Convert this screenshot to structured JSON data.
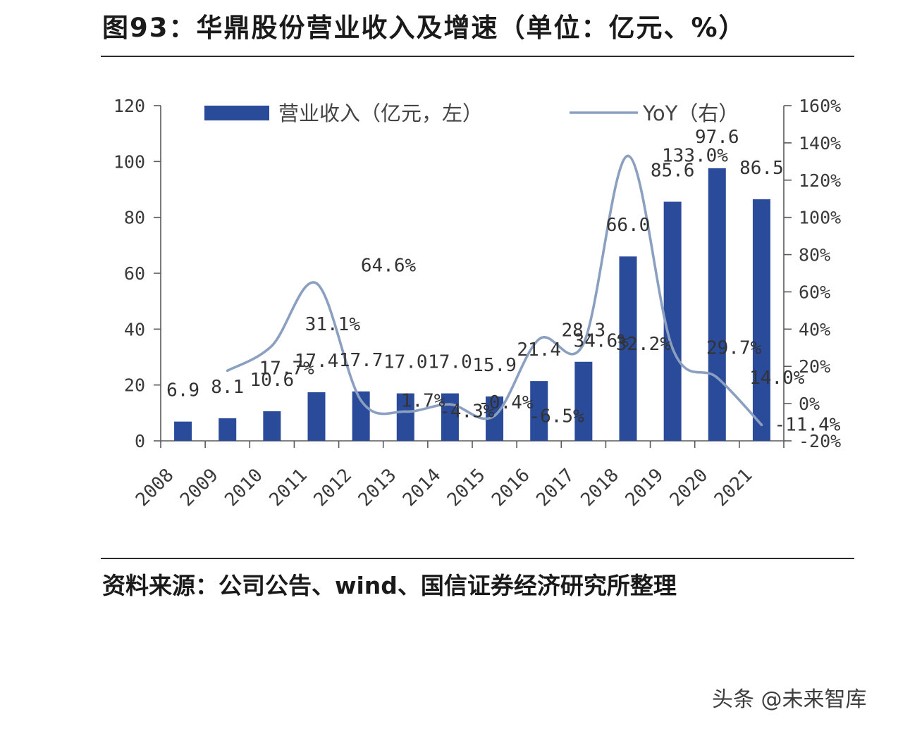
{
  "source": "资料来源：公司公告、wind、国信证券经济研究所整理",
  "watermark": "头条 @未来智库",
  "colors": {
    "bar": "#2a4a9a",
    "line": "#8ba0c0"
  },
  "chart_data": {
    "type": "bar",
    "title": "图93：华鼎股份营业收入及增速（单位：亿元、%）",
    "categories": [
      "2008",
      "2009",
      "2010",
      "2011",
      "2012",
      "2013",
      "2014",
      "2015",
      "2016",
      "2017",
      "2018",
      "2019",
      "2020",
      "2021"
    ],
    "series": [
      {
        "name": "营业收入（亿元，左）",
        "type": "bar",
        "axis": "left",
        "values": [
          6.9,
          8.1,
          10.6,
          17.4,
          17.7,
          17.0,
          17.0,
          15.9,
          21.4,
          28.3,
          66.0,
          85.6,
          97.6,
          86.5
        ],
        "data_labels": [
          "6.9",
          "8.1",
          "10.6",
          "17.4",
          "17.7",
          "17.0",
          "17.0",
          "15.9",
          "21.4",
          "28.3",
          "66.0",
          "85.6",
          "97.6",
          "86.5"
        ]
      },
      {
        "name": "YoY（右）",
        "type": "line",
        "axis": "right",
        "smooth": true,
        "values": [
          null,
          17.7,
          31.1,
          64.6,
          1.7,
          -4.3,
          -0.4,
          -6.5,
          34.6,
          32.2,
          133.0,
          29.7,
          14.0,
          -11.4
        ],
        "data_labels": [
          null,
          "17.7%",
          "31.1%",
          "64.6%",
          "1.7%",
          "-4.3%",
          "-0.4%",
          "-6.5%",
          "34.6%",
          "32.2%",
          "133.0%",
          "29.7%",
          "14.0%",
          "-11.4%"
        ]
      }
    ],
    "y_left": {
      "range": [
        0,
        120
      ],
      "ticks": [
        0,
        20,
        40,
        60,
        80,
        100,
        120
      ],
      "tick_labels": [
        "0",
        "20",
        "40",
        "60",
        "80",
        "100",
        "120"
      ]
    },
    "y_right": {
      "range": [
        -20,
        160
      ],
      "ticks": [
        -20,
        0,
        20,
        40,
        60,
        80,
        100,
        120,
        140,
        160
      ],
      "tick_labels": [
        "-20%",
        "0%",
        "20%",
        "40%",
        "60%",
        "80%",
        "100%",
        "120%",
        "140%",
        "160%"
      ]
    },
    "grid": false,
    "legend": "top"
  }
}
